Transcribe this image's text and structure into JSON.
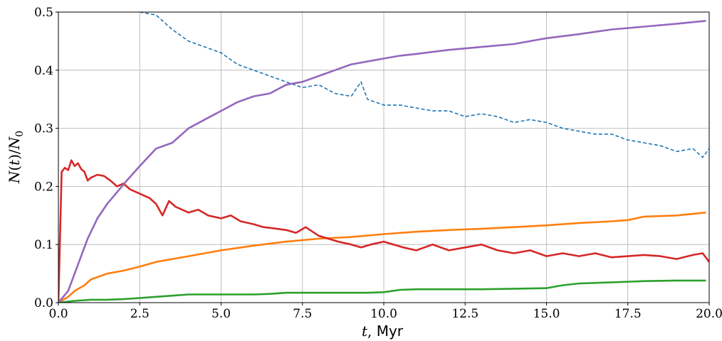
{
  "chart_data": {
    "type": "line",
    "xlabel": {
      "var": "t",
      "unit": "Myr"
    },
    "ylabel": "N(t)/N0",
    "xlim": [
      0,
      20
    ],
    "ylim": [
      0,
      0.5
    ],
    "grid": true,
    "xticks": [
      "0.0",
      "2.5",
      "5.0",
      "7.5",
      "10.0",
      "12.5",
      "15.0",
      "17.5",
      "20.0"
    ],
    "yticks": [
      "0.0",
      "0.1",
      "0.2",
      "0.3",
      "0.4",
      "0.5"
    ],
    "series": [
      {
        "color": "#1f77b4",
        "style": "dashed",
        "x": [
          2.5,
          3.0,
          3.5,
          4.0,
          4.5,
          5.0,
          5.5,
          6.0,
          6.5,
          7.0,
          7.5,
          8.0,
          8.5,
          9.0,
          9.3,
          9.5,
          10.0,
          10.5,
          11.0,
          11.5,
          12.0,
          12.5,
          13.0,
          13.5,
          14.0,
          14.5,
          15.0,
          15.5,
          16.0,
          16.5,
          17.0,
          17.5,
          18.0,
          18.5,
          19.0,
          19.5,
          19.8,
          20.0
        ],
        "y": [
          0.5,
          0.495,
          0.47,
          0.45,
          0.44,
          0.43,
          0.41,
          0.4,
          0.39,
          0.38,
          0.37,
          0.375,
          0.36,
          0.355,
          0.38,
          0.35,
          0.34,
          0.34,
          0.335,
          0.33,
          0.33,
          0.32,
          0.325,
          0.32,
          0.31,
          0.315,
          0.31,
          0.3,
          0.295,
          0.29,
          0.29,
          0.28,
          0.275,
          0.27,
          0.26,
          0.265,
          0.25,
          0.265
        ]
      },
      {
        "color": "#ff7f0e",
        "style": "solid",
        "x": [
          0,
          0.3,
          0.5,
          0.8,
          1.0,
          1.5,
          2.0,
          2.5,
          3.0,
          4.0,
          5.0,
          6.0,
          7.0,
          8.0,
          9.0,
          10.0,
          11.0,
          12.0,
          13.0,
          14.0,
          15.0,
          16.0,
          17.0,
          17.5,
          18.0,
          19.0,
          19.9
        ],
        "y": [
          0,
          0.01,
          0.02,
          0.03,
          0.04,
          0.05,
          0.055,
          0.062,
          0.07,
          0.08,
          0.09,
          0.098,
          0.105,
          0.11,
          0.113,
          0.118,
          0.122,
          0.125,
          0.127,
          0.13,
          0.133,
          0.137,
          0.14,
          0.142,
          0.148,
          0.15,
          0.155
        ]
      },
      {
        "color": "#2ca02c",
        "style": "solid",
        "x": [
          0,
          0.5,
          1.0,
          1.5,
          2.0,
          2.5,
          3.0,
          3.5,
          4.0,
          5.0,
          6.0,
          6.5,
          7.0,
          8.0,
          9.0,
          9.5,
          10.0,
          10.5,
          11.0,
          12.0,
          13.0,
          14.0,
          15.0,
          15.5,
          16.0,
          17.0,
          18.0,
          19.0,
          19.9
        ],
        "y": [
          0,
          0.003,
          0.005,
          0.005,
          0.006,
          0.008,
          0.01,
          0.012,
          0.014,
          0.014,
          0.014,
          0.015,
          0.017,
          0.017,
          0.017,
          0.017,
          0.018,
          0.022,
          0.023,
          0.023,
          0.023,
          0.024,
          0.025,
          0.03,
          0.033,
          0.035,
          0.037,
          0.038,
          0.038
        ]
      },
      {
        "color": "#d62728",
        "style": "solid",
        "x": [
          0,
          0.1,
          0.2,
          0.3,
          0.4,
          0.5,
          0.6,
          0.7,
          0.8,
          0.9,
          1.0,
          1.2,
          1.4,
          1.6,
          1.8,
          2.0,
          2.2,
          2.4,
          2.6,
          2.8,
          3.0,
          3.2,
          3.4,
          3.6,
          3.8,
          4.0,
          4.3,
          4.6,
          5.0,
          5.3,
          5.6,
          6.0,
          6.3,
          6.6,
          7.0,
          7.3,
          7.6,
          8.0,
          8.3,
          8.6,
          9.0,
          9.3,
          9.6,
          10.0,
          10.3,
          10.6,
          11.0,
          11.5,
          12.0,
          12.5,
          13.0,
          13.5,
          14.0,
          14.5,
          15.0,
          15.5,
          16.0,
          16.5,
          17.0,
          17.5,
          18.0,
          18.5,
          19.0,
          19.5,
          19.8,
          20.0
        ],
        "y": [
          0,
          0.225,
          0.232,
          0.228,
          0.245,
          0.235,
          0.24,
          0.23,
          0.225,
          0.21,
          0.215,
          0.22,
          0.218,
          0.21,
          0.2,
          0.205,
          0.195,
          0.19,
          0.185,
          0.18,
          0.17,
          0.15,
          0.175,
          0.165,
          0.16,
          0.155,
          0.16,
          0.15,
          0.145,
          0.15,
          0.14,
          0.135,
          0.13,
          0.128,
          0.125,
          0.12,
          0.13,
          0.115,
          0.11,
          0.105,
          0.1,
          0.095,
          0.1,
          0.105,
          0.1,
          0.095,
          0.09,
          0.1,
          0.09,
          0.095,
          0.1,
          0.09,
          0.085,
          0.09,
          0.08,
          0.085,
          0.08,
          0.085,
          0.078,
          0.08,
          0.082,
          0.08,
          0.075,
          0.082,
          0.085,
          0.07
        ]
      },
      {
        "color": "#9467bd",
        "style": "solid",
        "x": [
          0,
          0.3,
          0.6,
          0.9,
          1.2,
          1.5,
          1.8,
          2.1,
          2.5,
          3.0,
          3.5,
          4.0,
          4.5,
          5.0,
          5.5,
          6.0,
          6.5,
          7.0,
          7.5,
          8.0,
          8.5,
          9.0,
          9.5,
          10.0,
          10.5,
          11.0,
          12.0,
          13.0,
          14.0,
          15.0,
          16.0,
          17.0,
          18.0,
          19.0,
          19.9
        ],
        "y": [
          0,
          0.02,
          0.065,
          0.11,
          0.145,
          0.17,
          0.19,
          0.21,
          0.235,
          0.265,
          0.275,
          0.3,
          0.315,
          0.33,
          0.345,
          0.355,
          0.36,
          0.375,
          0.38,
          0.39,
          0.4,
          0.41,
          0.415,
          0.42,
          0.425,
          0.428,
          0.435,
          0.44,
          0.445,
          0.455,
          0.462,
          0.47,
          0.475,
          0.48,
          0.485
        ]
      }
    ]
  }
}
